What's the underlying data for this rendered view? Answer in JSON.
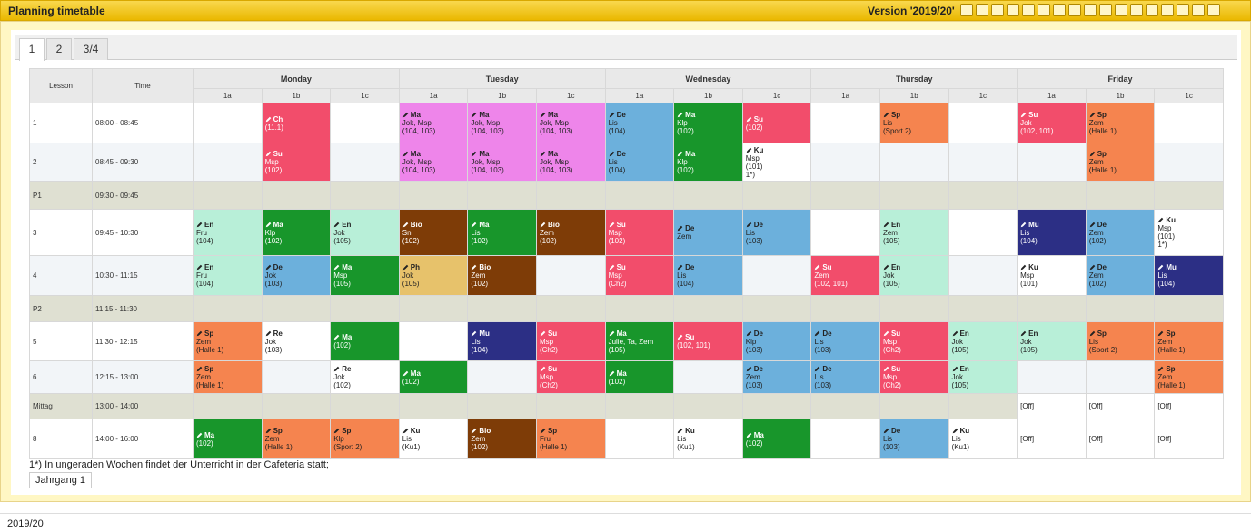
{
  "header": {
    "title": "Planning timetable",
    "version": "Version '2019/20'"
  },
  "tabs": [
    "1",
    "2",
    "3/4"
  ],
  "table": {
    "lesson_header": "Lesson",
    "time_header": "Time",
    "days": [
      {
        "name": "Monday",
        "classes": [
          "1a",
          "1b",
          "1c"
        ]
      },
      {
        "name": "Tuesday",
        "classes": [
          "1a",
          "1b",
          "1c"
        ]
      },
      {
        "name": "Wednesday",
        "classes": [
          "1a",
          "1b",
          "1c"
        ]
      },
      {
        "name": "Thursday",
        "classes": [
          "1a",
          "1b",
          "1c"
        ]
      },
      {
        "name": "Friday",
        "classes": [
          "1a",
          "1b",
          "1c"
        ]
      }
    ],
    "rows": [
      {
        "lesson": "1",
        "time": "08:00 - 08:45",
        "cells": [
          null,
          {
            "subject": "Ch",
            "room": "(11.1)",
            "color": "#f24d6b"
          },
          null,
          {
            "subject": "Ma",
            "teacher": "Jok, Msp",
            "room": "(104, 103)",
            "color": "#ee85ea"
          },
          {
            "subject": "Ma",
            "teacher": "Jok, Msp",
            "room": "(104, 103)",
            "color": "#ee85ea"
          },
          {
            "subject": "Ma",
            "teacher": "Jok, Msp",
            "room": "(104, 103)",
            "color": "#ee85ea"
          },
          {
            "subject": "De",
            "teacher": "Lis",
            "room": "(104)",
            "color": "#6cb0dc"
          },
          {
            "subject": "Ma",
            "teacher": "Klp",
            "room": "(102)",
            "color": "#18962b"
          },
          {
            "subject": "Su",
            "room": "(102)",
            "color": "#f24d6b"
          },
          null,
          {
            "subject": "Sp",
            "teacher": "Lis",
            "room": "(Sport 2)",
            "color": "#f5844f"
          },
          null,
          {
            "subject": "Su",
            "teacher": "Jok",
            "room": "(102, 101)",
            "color": "#f24d6b"
          },
          {
            "subject": "Sp",
            "teacher": "Zem",
            "room": "(Halle 1)",
            "color": "#f5844f"
          },
          null
        ]
      },
      {
        "lesson": "2",
        "time": "08:45 - 09:30",
        "cells": [
          null,
          {
            "subject": "Su",
            "teacher": "Msp",
            "room": "(102)",
            "color": "#f24d6b"
          },
          null,
          {
            "subject": "Ma",
            "teacher": "Jok, Msp",
            "room": "(104, 103)",
            "color": "#ee85ea"
          },
          {
            "subject": "Ma",
            "teacher": "Jok, Msp",
            "room": "(104, 103)",
            "color": "#ee85ea"
          },
          {
            "subject": "Ma",
            "teacher": "Jok, Msp",
            "room": "(104, 103)",
            "color": "#ee85ea"
          },
          {
            "subject": "De",
            "teacher": "Lis",
            "room": "(104)",
            "color": "#6cb0dc"
          },
          {
            "subject": "Ma",
            "teacher": "Klp",
            "room": "(102)",
            "color": "#18962b"
          },
          {
            "subject": "Ku",
            "teacher": "Msp",
            "room": "(101)",
            "note": "1*)",
            "color": "#ffffff"
          },
          null,
          null,
          null,
          null,
          {
            "subject": "Sp",
            "teacher": "Zem",
            "room": "(Halle 1)",
            "color": "#f5844f"
          },
          null
        ]
      },
      {
        "lesson": "P1",
        "time": "09:30 - 09:45",
        "break": true
      },
      {
        "lesson": "3",
        "time": "09:45 - 10:30",
        "cells": [
          {
            "subject": "En",
            "teacher": "Fru",
            "room": "(104)",
            "color": "#b8efd8"
          },
          {
            "subject": "Ma",
            "teacher": "Klp",
            "room": "(102)",
            "color": "#18962b"
          },
          {
            "subject": "En",
            "teacher": "Jok",
            "room": "(105)",
            "color": "#b8efd8"
          },
          {
            "subject": "Bio",
            "teacher": "Sn",
            "room": "(102)",
            "color": "#7e3c07"
          },
          {
            "subject": "Ma",
            "teacher": "Lis",
            "room": "(102)",
            "color": "#18962b"
          },
          {
            "subject": "Bio",
            "teacher": "Zem",
            "room": "(102)",
            "color": "#7e3c07"
          },
          {
            "subject": "Su",
            "teacher": "Msp",
            "room": "(102)",
            "color": "#f24d6b"
          },
          {
            "subject": "De",
            "teacher": "Zem",
            "color": "#6cb0dc"
          },
          {
            "subject": "De",
            "teacher": "Lis",
            "room": "(103)",
            "color": "#6cb0dc"
          },
          null,
          {
            "subject": "En",
            "teacher": "Zem",
            "room": "(105)",
            "color": "#b8efd8"
          },
          null,
          {
            "subject": "Mu",
            "teacher": "Lis",
            "room": "(104)",
            "color": "#2c2f85"
          },
          {
            "subject": "De",
            "teacher": "Zem",
            "room": "(102)",
            "color": "#6cb0dc"
          },
          {
            "subject": "Ku",
            "teacher": "Msp",
            "room": "(101)",
            "note": "1*)",
            "color": "#ffffff"
          }
        ]
      },
      {
        "lesson": "4",
        "time": "10:30 - 11:15",
        "cells": [
          {
            "subject": "En",
            "teacher": "Fru",
            "room": "(104)",
            "color": "#b8efd8"
          },
          {
            "subject": "De",
            "teacher": "Jok",
            "room": "(103)",
            "color": "#6cb0dc"
          },
          {
            "subject": "Ma",
            "teacher": "Msp",
            "room": "(105)",
            "color": "#18962b"
          },
          {
            "subject": "Ph",
            "teacher": "Jok",
            "room": "(105)",
            "color": "#e7c26b"
          },
          {
            "subject": "Bio",
            "teacher": "Zem",
            "room": "(102)",
            "color": "#7e3c07"
          },
          null,
          {
            "subject": "Su",
            "teacher": "Msp",
            "room": "(Ch2)",
            "color": "#f24d6b"
          },
          {
            "subject": "De",
            "teacher": "Lis",
            "room": "(104)",
            "color": "#6cb0dc"
          },
          null,
          {
            "subject": "Su",
            "teacher": "Zem",
            "room": "(102, 101)",
            "color": "#f24d6b"
          },
          {
            "subject": "En",
            "teacher": "Jok",
            "room": "(105)",
            "color": "#b8efd8"
          },
          null,
          {
            "subject": "Ku",
            "teacher": "Msp",
            "room": "(101)",
            "color": "#ffffff"
          },
          {
            "subject": "De",
            "teacher": "Zem",
            "room": "(102)",
            "color": "#6cb0dc"
          },
          {
            "subject": "Mu",
            "teacher": "Lis",
            "room": "(104)",
            "color": "#2c2f85"
          }
        ]
      },
      {
        "lesson": "P2",
        "time": "11:15 - 11:30",
        "break": true
      },
      {
        "lesson": "5",
        "time": "11:30 - 12:15",
        "cells": [
          {
            "subject": "Sp",
            "teacher": "Zem",
            "room": "(Halle 1)",
            "color": "#f5844f"
          },
          {
            "subject": "Re",
            "teacher": "Jok",
            "room": "(103)",
            "color": "#ffffff"
          },
          {
            "subject": "Ma",
            "room": "(102)",
            "color": "#18962b"
          },
          null,
          {
            "subject": "Mu",
            "teacher": "Lis",
            "room": "(104)",
            "color": "#2c2f85"
          },
          {
            "subject": "Su",
            "teacher": "Msp",
            "room": "(Ch2)",
            "color": "#f24d6b"
          },
          {
            "subject": "Ma",
            "teacher": "Julie, Ta, Zem",
            "room": "(105)",
            "color": "#18962b"
          },
          {
            "subject": "Su",
            "room": "(102, 101)",
            "color": "#f24d6b"
          },
          {
            "subject": "De",
            "teacher": "Klp",
            "room": "(103)",
            "color": "#6cb0dc"
          },
          {
            "subject": "De",
            "teacher": "Lis",
            "room": "(103)",
            "color": "#6cb0dc"
          },
          {
            "subject": "Su",
            "teacher": "Msp",
            "room": "(Ch2)",
            "color": "#f24d6b"
          },
          {
            "subject": "En",
            "teacher": "Jok",
            "room": "(105)",
            "color": "#b8efd8"
          },
          {
            "subject": "En",
            "teacher": "Jok",
            "room": "(105)",
            "color": "#b8efd8"
          },
          {
            "subject": "Sp",
            "teacher": "Lis",
            "room": "(Sport 2)",
            "color": "#f5844f"
          },
          {
            "subject": "Sp",
            "teacher": "Zem",
            "room": "(Halle 1)",
            "color": "#f5844f"
          }
        ]
      },
      {
        "lesson": "6",
        "time": "12:15 - 13:00",
        "cells": [
          {
            "subject": "Sp",
            "teacher": "Zem",
            "room": "(Halle 1)",
            "color": "#f5844f"
          },
          null,
          {
            "subject": "Re",
            "teacher": "Jok",
            "room": "(102)",
            "color": "#ffffff"
          },
          {
            "subject": "Ma",
            "room": "(102)",
            "color": "#18962b"
          },
          null,
          {
            "subject": "Su",
            "teacher": "Msp",
            "room": "(Ch2)",
            "color": "#f24d6b"
          },
          {
            "subject": "Ma",
            "room": "(102)",
            "color": "#18962b"
          },
          null,
          {
            "subject": "De",
            "teacher": "Zem",
            "room": "(103)",
            "color": "#6cb0dc"
          },
          {
            "subject": "De",
            "teacher": "Lis",
            "room": "(103)",
            "color": "#6cb0dc"
          },
          {
            "subject": "Su",
            "teacher": "Msp",
            "room": "(Ch2)",
            "color": "#f24d6b"
          },
          {
            "subject": "En",
            "teacher": "Jok",
            "room": "(105)",
            "color": "#b8efd8"
          },
          null,
          null,
          {
            "subject": "Sp",
            "teacher": "Zem",
            "room": "(Halle 1)",
            "color": "#f5844f"
          }
        ]
      },
      {
        "lesson": "Mittag",
        "time": "13:00 - 14:00",
        "break": true,
        "cells": [
          null,
          null,
          null,
          null,
          null,
          null,
          null,
          null,
          null,
          null,
          null,
          null,
          {
            "text": "[Off]"
          },
          {
            "text": "[Off]"
          },
          {
            "text": "[Off]"
          }
        ]
      },
      {
        "lesson": "8",
        "time": "14:00 - 16:00",
        "cells": [
          {
            "subject": "Ma",
            "room": "(102)",
            "color": "#18962b"
          },
          {
            "subject": "Sp",
            "teacher": "Zem",
            "room": "(Halle 1)",
            "color": "#f5844f"
          },
          {
            "subject": "Sp",
            "teacher": "Klp",
            "room": "(Sport 2)",
            "color": "#f5844f"
          },
          {
            "subject": "Ku",
            "teacher": "Lis",
            "room": "(Ku1)",
            "color": "#ffffff"
          },
          {
            "subject": "Bio",
            "teacher": "Zem",
            "room": "(102)",
            "color": "#7e3c07"
          },
          {
            "subject": "Sp",
            "teacher": "Fru",
            "room": "(Halle 1)",
            "color": "#f5844f"
          },
          null,
          {
            "subject": "Ku",
            "teacher": "Lis",
            "room": "(Ku1)",
            "color": "#ffffff"
          },
          {
            "subject": "Ma",
            "room": "(102)",
            "color": "#18962b"
          },
          null,
          {
            "subject": "De",
            "teacher": "Lis",
            "room": "(103)",
            "color": "#6cb0dc"
          },
          {
            "subject": "Ku",
            "teacher": "Lis",
            "room": "(Ku1)",
            "color": "#ffffff"
          },
          {
            "text": "[Off]"
          },
          {
            "text": "[Off]"
          },
          {
            "text": "[Off]"
          }
        ]
      }
    ]
  },
  "footnote": "1*) In ungeraden Wochen findet der Unterricht in der Cafeteria statt;",
  "button": "Jahrgang 1",
  "footer": "2019/20"
}
